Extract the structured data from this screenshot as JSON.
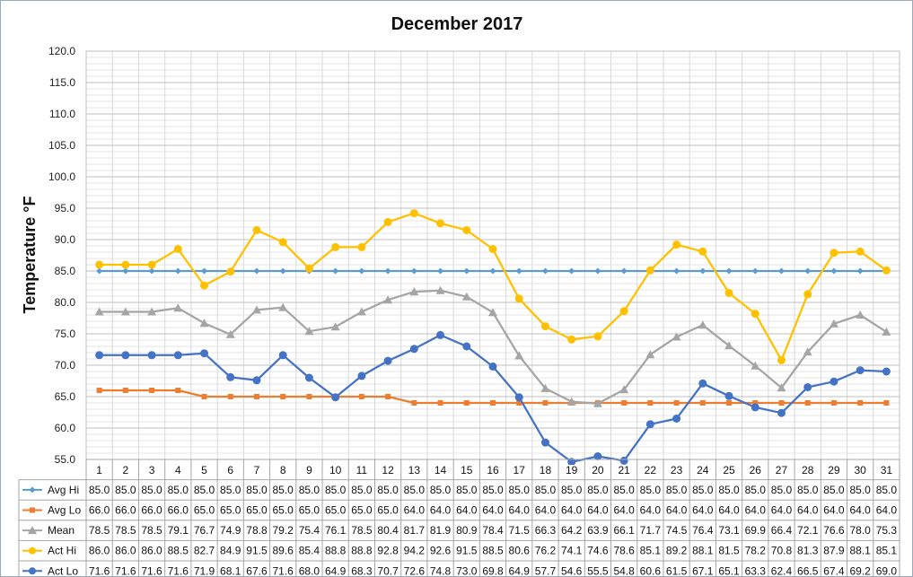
{
  "chart_data": {
    "type": "line",
    "title": "December 2017",
    "ylabel": "Temperature °F",
    "xlabel": "",
    "ylim": [
      55,
      120
    ],
    "ytick_step": 5,
    "ytick_labels": [
      "55.0",
      "60.0",
      "65.0",
      "70.0",
      "75.0",
      "80.0",
      "85.0",
      "90.0",
      "95.0",
      "100.0",
      "105.0",
      "110.0",
      "115.0",
      "120.0"
    ],
    "grid": true,
    "legend": "data table below plot",
    "categories": [
      "1",
      "2",
      "3",
      "4",
      "5",
      "6",
      "7",
      "8",
      "9",
      "10",
      "11",
      "12",
      "13",
      "14",
      "15",
      "16",
      "17",
      "18",
      "19",
      "20",
      "21",
      "22",
      "23",
      "24",
      "25",
      "26",
      "27",
      "28",
      "29",
      "30",
      "31"
    ],
    "series": [
      {
        "name": "Avg Hi",
        "color": "#5B9BD5",
        "marker": "diamond",
        "values": [
          85.0,
          85.0,
          85.0,
          85.0,
          85.0,
          85.0,
          85.0,
          85.0,
          85.0,
          85.0,
          85.0,
          85.0,
          85.0,
          85.0,
          85.0,
          85.0,
          85.0,
          85.0,
          85.0,
          85.0,
          85.0,
          85.0,
          85.0,
          85.0,
          85.0,
          85.0,
          85.0,
          85.0,
          85.0,
          85.0,
          85.0
        ]
      },
      {
        "name": "Avg Lo",
        "color": "#ED7D31",
        "marker": "square",
        "values": [
          66.0,
          66.0,
          66.0,
          66.0,
          65.0,
          65.0,
          65.0,
          65.0,
          65.0,
          65.0,
          65.0,
          65.0,
          64.0,
          64.0,
          64.0,
          64.0,
          64.0,
          64.0,
          64.0,
          64.0,
          64.0,
          64.0,
          64.0,
          64.0,
          64.0,
          64.0,
          64.0,
          64.0,
          64.0,
          64.0,
          64.0
        ]
      },
      {
        "name": "Mean",
        "color": "#A5A5A5",
        "marker": "triangle",
        "values": [
          78.5,
          78.5,
          78.5,
          79.1,
          76.7,
          74.9,
          78.8,
          79.2,
          75.4,
          76.1,
          78.5,
          80.4,
          81.7,
          81.9,
          80.9,
          78.4,
          71.5,
          66.3,
          64.2,
          63.9,
          66.1,
          71.7,
          74.5,
          76.4,
          73.1,
          69.9,
          66.4,
          72.1,
          76.6,
          78.0,
          75.3
        ]
      },
      {
        "name": "Act Hi",
        "color": "#FFC000",
        "marker": "circle",
        "values": [
          86.0,
          86.0,
          86.0,
          88.5,
          82.7,
          84.9,
          91.5,
          89.6,
          85.4,
          88.8,
          88.8,
          92.8,
          94.2,
          92.6,
          91.5,
          88.5,
          80.6,
          76.2,
          74.1,
          74.6,
          78.6,
          85.1,
          89.2,
          88.1,
          81.5,
          78.2,
          70.8,
          81.3,
          87.9,
          88.1,
          85.1
        ]
      },
      {
        "name": "Act Lo",
        "color": "#4472C4",
        "marker": "circle",
        "values": [
          71.6,
          71.6,
          71.6,
          71.6,
          71.9,
          68.1,
          67.6,
          71.6,
          68.0,
          64.9,
          68.3,
          70.7,
          72.6,
          74.8,
          73.0,
          69.8,
          64.9,
          57.7,
          54.6,
          55.5,
          54.8,
          60.6,
          61.5,
          67.1,
          65.1,
          63.3,
          62.4,
          66.5,
          67.4,
          69.2,
          69.0
        ]
      }
    ]
  }
}
